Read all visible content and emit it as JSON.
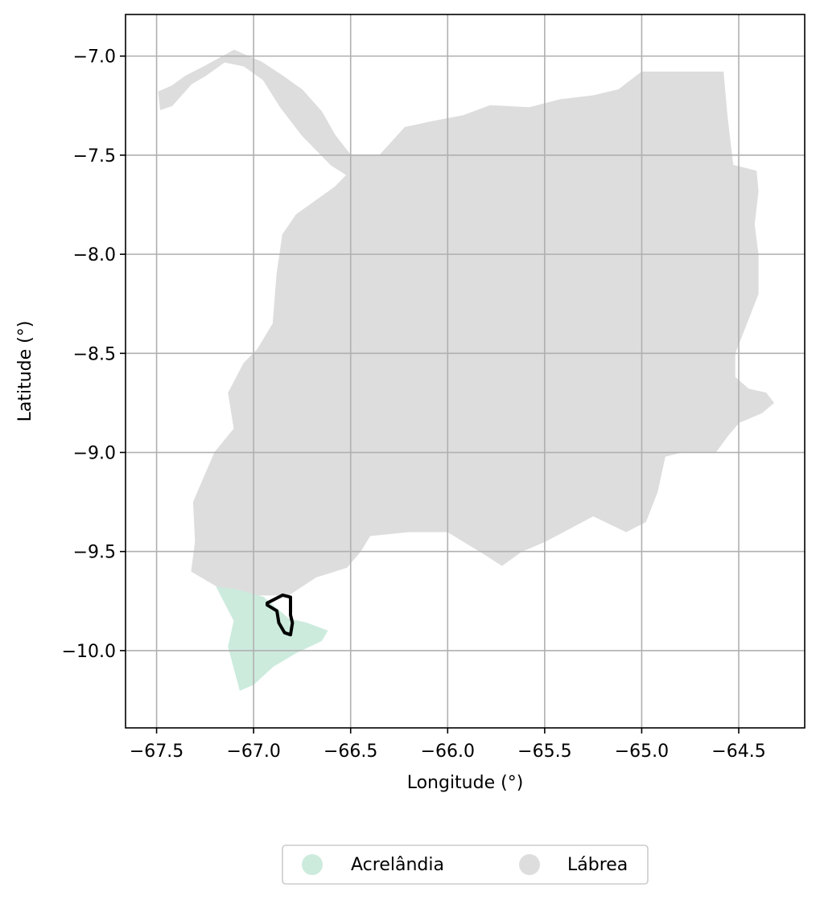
{
  "chart_data": {
    "type": "map",
    "xlabel": "Longitude (°)",
    "ylabel": "Latitude (°)",
    "xlim": [
      -67.66,
      -64.16
    ],
    "ylim": [
      -10.39,
      -6.79
    ],
    "grid": true,
    "legend_placement": "bottom-center, below plot",
    "x_ticks": [
      {
        "value": -67.5,
        "label": "−67.5"
      },
      {
        "value": -67.0,
        "label": "−67.0"
      },
      {
        "value": -66.5,
        "label": "−66.5"
      },
      {
        "value": -66.0,
        "label": "−66.0"
      },
      {
        "value": -65.5,
        "label": "−65.5"
      },
      {
        "value": -65.0,
        "label": "−65.0"
      },
      {
        "value": -64.5,
        "label": "−64.5"
      }
    ],
    "y_ticks": [
      {
        "value": -7.0,
        "label": "−7.0"
      },
      {
        "value": -7.5,
        "label": "−7.5"
      },
      {
        "value": -8.0,
        "label": "−8.0"
      },
      {
        "value": -8.5,
        "label": "−8.5"
      },
      {
        "value": -9.0,
        "label": "−9.0"
      },
      {
        "value": -9.5,
        "label": "−9.5"
      },
      {
        "value": -10.0,
        "label": "−10.0"
      }
    ],
    "regions": [
      {
        "name": "Lábrea",
        "color": "#dddddd",
        "coords": [
          [
            -67.49,
            -7.18
          ],
          [
            -67.42,
            -7.15
          ],
          [
            -67.35,
            -7.1
          ],
          [
            -67.25,
            -7.05
          ],
          [
            -67.1,
            -6.97
          ],
          [
            -66.96,
            -7.03
          ],
          [
            -66.85,
            -7.1
          ],
          [
            -66.75,
            -7.17
          ],
          [
            -66.65,
            -7.28
          ],
          [
            -66.58,
            -7.4
          ],
          [
            -66.5,
            -7.5
          ],
          [
            -66.35,
            -7.5
          ],
          [
            -66.22,
            -7.36
          ],
          [
            -66.08,
            -7.33
          ],
          [
            -65.92,
            -7.3
          ],
          [
            -65.78,
            -7.25
          ],
          [
            -65.58,
            -7.26
          ],
          [
            -65.42,
            -7.22
          ],
          [
            -65.25,
            -7.2
          ],
          [
            -65.12,
            -7.17
          ],
          [
            -65.0,
            -7.08
          ],
          [
            -64.9,
            -7.08
          ],
          [
            -64.58,
            -7.08
          ],
          [
            -64.56,
            -7.3
          ],
          [
            -64.53,
            -7.55
          ],
          [
            -64.41,
            -7.58
          ],
          [
            -64.4,
            -7.68
          ],
          [
            -64.42,
            -7.85
          ],
          [
            -64.4,
            -8.0
          ],
          [
            -64.4,
            -8.2
          ],
          [
            -64.46,
            -8.35
          ],
          [
            -64.52,
            -8.5
          ],
          [
            -64.52,
            -8.62
          ],
          [
            -64.45,
            -8.68
          ],
          [
            -64.36,
            -8.7
          ],
          [
            -64.32,
            -8.75
          ],
          [
            -64.38,
            -8.8
          ],
          [
            -64.5,
            -8.85
          ],
          [
            -64.56,
            -8.92
          ],
          [
            -64.62,
            -9.0
          ],
          [
            -64.8,
            -9.0
          ],
          [
            -64.88,
            -9.02
          ],
          [
            -64.92,
            -9.2
          ],
          [
            -64.98,
            -9.35
          ],
          [
            -65.08,
            -9.4
          ],
          [
            -65.25,
            -9.32
          ],
          [
            -65.5,
            -9.45
          ],
          [
            -65.62,
            -9.5
          ],
          [
            -65.72,
            -9.57
          ],
          [
            -65.8,
            -9.52
          ],
          [
            -66.0,
            -9.4
          ],
          [
            -66.2,
            -9.4
          ],
          [
            -66.4,
            -9.42
          ],
          [
            -66.45,
            -9.5
          ],
          [
            -66.52,
            -9.58
          ],
          [
            -66.68,
            -9.63
          ],
          [
            -66.82,
            -9.72
          ],
          [
            -67.0,
            -9.72
          ],
          [
            -67.18,
            -9.68
          ],
          [
            -67.32,
            -9.6
          ],
          [
            -67.3,
            -9.45
          ],
          [
            -67.31,
            -9.25
          ],
          [
            -67.2,
            -9.0
          ],
          [
            -67.1,
            -8.88
          ],
          [
            -67.13,
            -8.7
          ],
          [
            -67.05,
            -8.55
          ],
          [
            -66.98,
            -8.48
          ],
          [
            -66.9,
            -8.35
          ],
          [
            -66.88,
            -8.1
          ],
          [
            -66.85,
            -7.9
          ],
          [
            -66.78,
            -7.8
          ],
          [
            -66.58,
            -7.66
          ],
          [
            -66.52,
            -7.6
          ],
          [
            -66.6,
            -7.55
          ],
          [
            -66.75,
            -7.4
          ],
          [
            -66.86,
            -7.26
          ],
          [
            -66.95,
            -7.12
          ],
          [
            -67.05,
            -7.05
          ],
          [
            -67.15,
            -7.03
          ],
          [
            -67.25,
            -7.1
          ],
          [
            -67.32,
            -7.14
          ],
          [
            -67.42,
            -7.25
          ],
          [
            -67.48,
            -7.27
          ],
          [
            -67.49,
            -7.18
          ]
        ]
      },
      {
        "name": "Acrelândia",
        "color": "#ccebdd",
        "coords": [
          [
            -67.19,
            -9.68
          ],
          [
            -67.1,
            -9.69
          ],
          [
            -66.95,
            -9.73
          ],
          [
            -66.82,
            -9.84
          ],
          [
            -66.73,
            -9.86
          ],
          [
            -66.62,
            -9.9
          ],
          [
            -66.65,
            -9.95
          ],
          [
            -66.78,
            -10.01
          ],
          [
            -66.9,
            -10.08
          ],
          [
            -67.0,
            -10.17
          ],
          [
            -67.07,
            -10.2
          ],
          [
            -67.1,
            -10.09
          ],
          [
            -67.13,
            -9.98
          ],
          [
            -67.1,
            -9.85
          ],
          [
            -67.19,
            -9.68
          ]
        ]
      }
    ],
    "outline": {
      "color": "#000000",
      "coords": [
        [
          -66.93,
          -9.76
        ],
        [
          -66.85,
          -9.72
        ],
        [
          -66.81,
          -9.73
        ],
        [
          -66.81,
          -9.82
        ],
        [
          -66.8,
          -9.86
        ],
        [
          -66.81,
          -9.92
        ],
        [
          -66.84,
          -9.91
        ],
        [
          -66.87,
          -9.86
        ],
        [
          -66.88,
          -9.8
        ],
        [
          -66.93,
          -9.77
        ],
        [
          -66.93,
          -9.76
        ]
      ]
    },
    "legend": [
      {
        "label": "Acrelândia",
        "color": "#ccebdd"
      },
      {
        "label": "Lábrea",
        "color": "#dddddd"
      }
    ]
  }
}
